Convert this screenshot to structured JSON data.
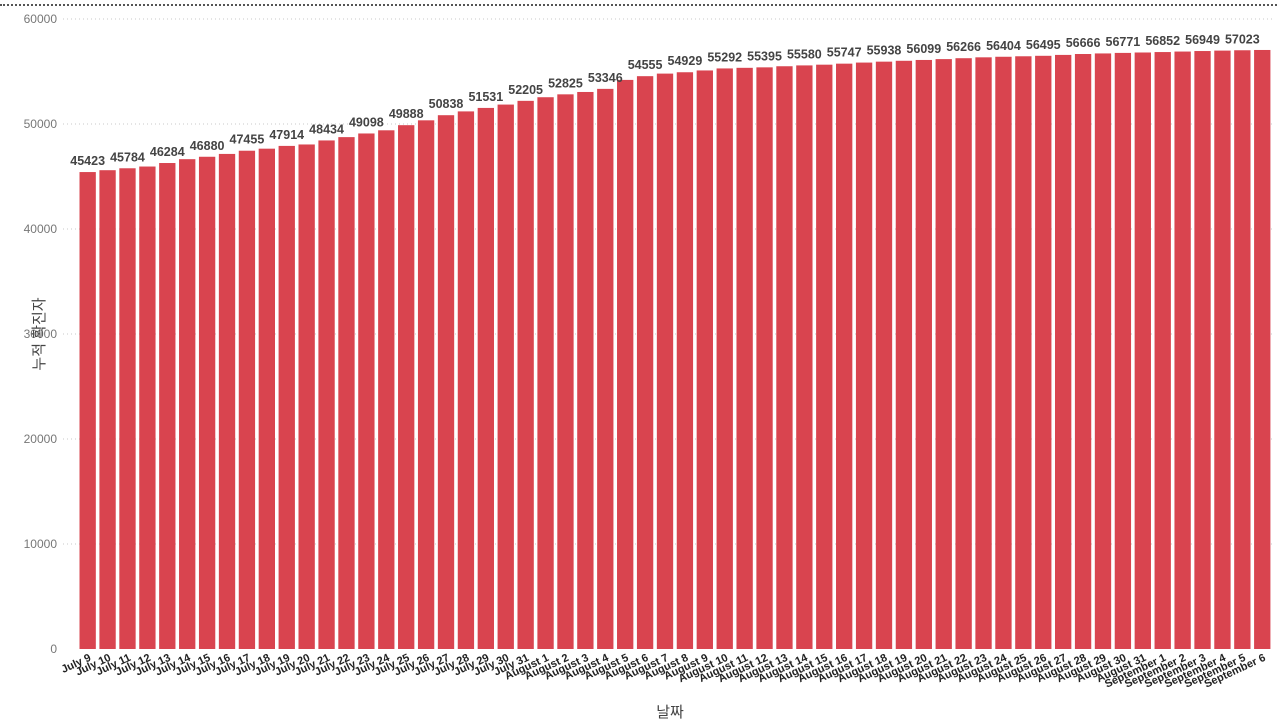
{
  "chart_data": {
    "type": "bar",
    "title": "",
    "xlabel": "날짜",
    "ylabel": "누적 확진자",
    "ylim": [
      0,
      60000
    ],
    "yticks": [
      0,
      10000,
      20000,
      30000,
      40000,
      50000,
      60000
    ],
    "grid": true,
    "bar_color": "#D9444F",
    "categories": [
      "July 9",
      "July 10",
      "July 11",
      "July 12",
      "July 13",
      "July 14",
      "July 15",
      "July 16",
      "July 17",
      "July 18",
      "July 19",
      "July 20",
      "July 21",
      "July 22",
      "July 23",
      "July 24",
      "July 25",
      "July 26",
      "July 27",
      "July 28",
      "July 29",
      "July 30",
      "July 31",
      "August 1",
      "August 2",
      "August 3",
      "August 4",
      "August 5",
      "August 6",
      "August 7",
      "August 8",
      "August 9",
      "August 10",
      "August 11",
      "August 12",
      "August 13",
      "August 14",
      "August 15",
      "August 16",
      "August 17",
      "August 18",
      "August 19",
      "August 20",
      "August 21",
      "August 22",
      "August 23",
      "August 24",
      "August 25",
      "August 26",
      "August 27",
      "August 28",
      "August 29",
      "August 30",
      "August 31",
      "September 1",
      "September 2",
      "September 3",
      "September 4",
      "September 5",
      "September 6"
    ],
    "values": [
      45423,
      45600,
      45784,
      45950,
      46284,
      46650,
      46880,
      47150,
      47455,
      47650,
      47914,
      48050,
      48434,
      48750,
      49098,
      49400,
      49888,
      50350,
      50838,
      51200,
      51531,
      51850,
      52205,
      52550,
      52825,
      53050,
      53346,
      54200,
      54555,
      54800,
      54929,
      55100,
      55292,
      55350,
      55395,
      55500,
      55580,
      55650,
      55747,
      55850,
      55938,
      56020,
      56099,
      56180,
      56266,
      56350,
      56404,
      56450,
      56495,
      56580,
      56666,
      56720,
      56771,
      56810,
      56852,
      56900,
      56949,
      56990,
      57023,
      57050
    ],
    "data_labels": [
      "45423",
      "",
      "45784",
      "",
      "46284",
      "",
      "46880",
      "",
      "47455",
      "",
      "47914",
      "",
      "48434",
      "",
      "49098",
      "",
      "49888",
      "",
      "50838",
      "",
      "51531",
      "",
      "52205",
      "",
      "52825",
      "",
      "53346",
      "",
      "54555",
      "",
      "54929",
      "",
      "55292",
      "",
      "55395",
      "",
      "55580",
      "",
      "55747",
      "",
      "55938",
      "",
      "56099",
      "",
      "56266",
      "",
      "56404",
      "",
      "56495",
      "",
      "56666",
      "",
      "56771",
      "",
      "56852",
      "",
      "56949",
      "",
      "57023",
      ""
    ]
  }
}
